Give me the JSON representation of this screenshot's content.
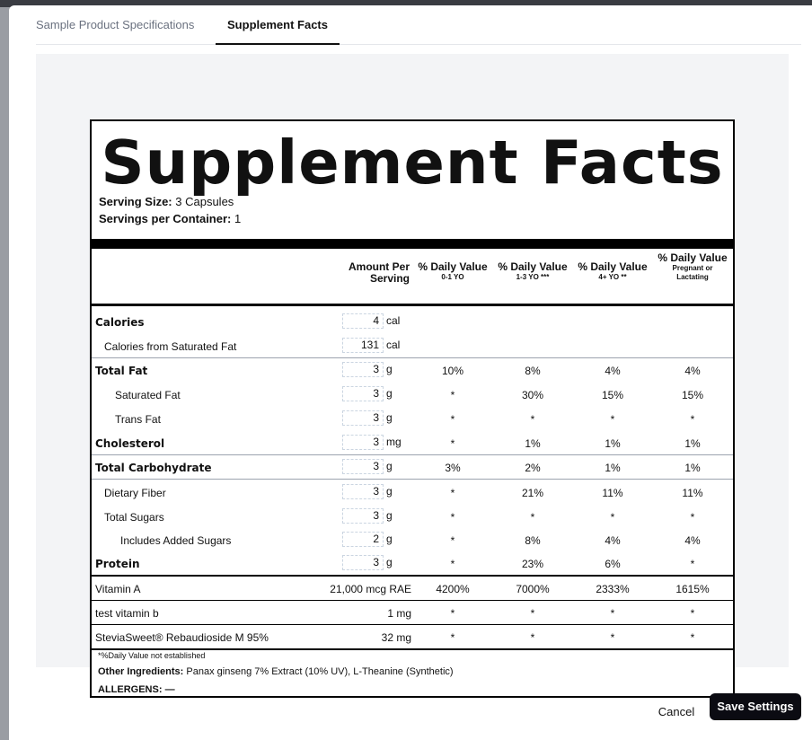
{
  "tabs": [
    {
      "label": "Sample Product Specifications"
    },
    {
      "label": "Supplement Facts"
    }
  ],
  "label": {
    "title": "Supplement Facts",
    "serving_size_label": "Serving Size:",
    "serving_size_value": "3 Capsules",
    "servings_label": "Servings per Container:",
    "servings_value": "1",
    "headers": {
      "amount": "Amount Per Serving",
      "dv1": "% Daily Value",
      "dv1_sub": "0-1 YO",
      "dv2": "% Daily Value",
      "dv2_sub": "1-3 YO ***",
      "dv3": "% Daily Value",
      "dv3_sub": "4+ YO **",
      "dv4": "% Daily Value",
      "dv4_sub": "Pregnant or Lactating"
    },
    "rows": [
      {
        "name": "Calories",
        "amount": "4",
        "unit": "cal",
        "dv": [
          "",
          "",
          "",
          ""
        ]
      },
      {
        "name": "Calories from Saturated Fat",
        "amount": "131",
        "unit": "cal",
        "dv": [
          "",
          "",
          "",
          ""
        ]
      },
      {
        "name": "Total Fat",
        "amount": "3",
        "unit": "g",
        "dv": [
          "10%",
          "8%",
          "4%",
          "4%"
        ]
      },
      {
        "name": "Saturated Fat",
        "amount": "3",
        "unit": "g",
        "dv": [
          "*",
          "30%",
          "15%",
          "15%"
        ]
      },
      {
        "name": "Trans Fat",
        "amount": "3",
        "unit": "g",
        "dv": [
          "*",
          "*",
          "*",
          "*"
        ]
      },
      {
        "name": "Cholesterol",
        "amount": "3",
        "unit": "mg",
        "dv": [
          "*",
          "1%",
          "1%",
          "1%"
        ]
      },
      {
        "name": "Total Carbohydrate",
        "amount": "3",
        "unit": "g",
        "dv": [
          "3%",
          "2%",
          "1%",
          "1%"
        ]
      },
      {
        "name": "Dietary Fiber",
        "amount": "3",
        "unit": "g",
        "dv": [
          "*",
          "21%",
          "11%",
          "11%"
        ]
      },
      {
        "name": "Total Sugars",
        "amount": "3",
        "unit": "g",
        "dv": [
          "*",
          "*",
          "*",
          "*"
        ]
      },
      {
        "name": "Includes Added Sugars",
        "amount": "2",
        "unit": "g",
        "dv": [
          "*",
          "8%",
          "4%",
          "4%"
        ]
      },
      {
        "name": "Protein",
        "amount": "3",
        "unit": "g",
        "dv": [
          "*",
          "23%",
          "6%",
          "*"
        ]
      }
    ],
    "vitamins": [
      {
        "name": "Vitamin A",
        "amount": "21,000 mcg RAE",
        "dv": [
          "4200%",
          "7000%",
          "2333%",
          "1615%"
        ]
      },
      {
        "name": "test vitamin b",
        "amount": "1 mg",
        "dv": [
          "*",
          "*",
          "*",
          "*"
        ]
      },
      {
        "name": "SteviaSweet® Rebaudioside M 95%",
        "amount": "32 mg",
        "dv": [
          "*",
          "*",
          "*",
          "*"
        ]
      }
    ],
    "footnote": "*%Daily Value not established",
    "other_ingredients_label": "Other Ingredients:",
    "other_ingredients_value": "Panax ginseng 7% Extract (10% UV), L-Theanine (Synthetic)",
    "allergens_label": "ALLERGENS:",
    "allergens_value": "—"
  },
  "actions": {
    "cancel": "Cancel",
    "save": "Save Settings"
  }
}
